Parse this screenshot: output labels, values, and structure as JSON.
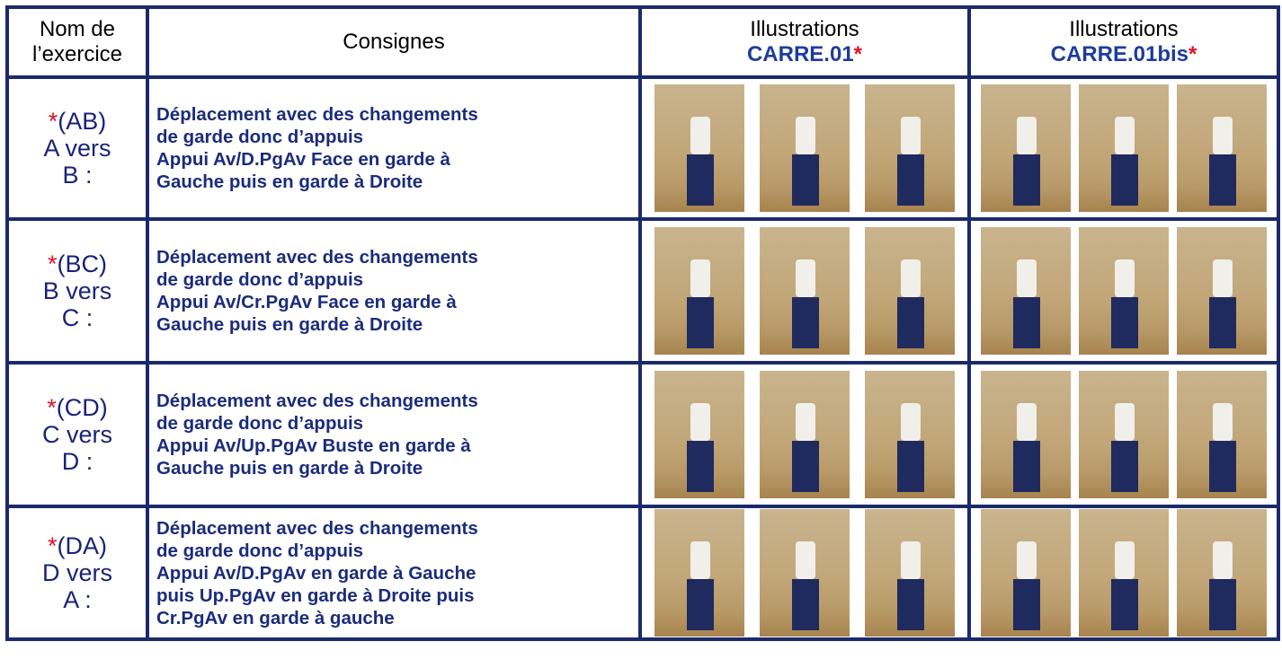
{
  "table": {
    "header": {
      "name": [
        "Nom de",
        "l’exercice"
      ],
      "instructions": "Consignes",
      "illustrations_1": {
        "title": "Illustrations",
        "code": "CARRE.01",
        "mark": "*"
      },
      "illustrations_2": {
        "title": "Illustrations",
        "code": "CARRE.01bis",
        "mark": "*"
      }
    },
    "rows": [
      {
        "mark": "*",
        "code": "(AB)",
        "label": [
          "A vers",
          "B :"
        ],
        "instructions": [
          "Déplacement avec des changements",
          "de garde donc d’appuis",
          "Appui Av/D.PgAv Face en garde à",
          "Gauche puis en garde à Droite"
        ]
      },
      {
        "mark": "*",
        "code": "(BC)",
        "label": [
          "B vers",
          "C :"
        ],
        "instructions": [
          "Déplacement avec des changements",
          "de garde donc d’appuis",
          "Appui Av/Cr.PgAv Face en garde à",
          "Gauche puis en garde à Droite"
        ]
      },
      {
        "mark": "*",
        "code": "(CD)",
        "label": [
          "C vers",
          "D :"
        ],
        "instructions": [
          "Déplacement avec des changements",
          "de garde donc d’appuis",
          "Appui Av/Up.PgAv Buste en garde à",
          "Gauche puis en garde à Droite"
        ]
      },
      {
        "mark": "*",
        "code": "(DA)",
        "label": [
          "D vers",
          "A :"
        ],
        "instructions": [
          "Déplacement avec des changements",
          "de garde donc d’appuis",
          "Appui Av/D.PgAv en garde à Gauche",
          "puis Up.PgAv en garde à Droite puis",
          "Cr.PgAv en garde à gauche"
        ]
      }
    ]
  }
}
